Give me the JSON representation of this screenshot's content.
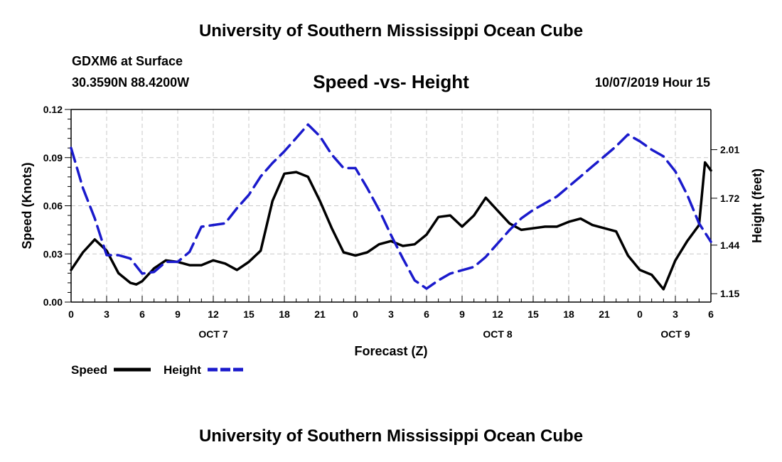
{
  "header": {
    "title_top": "University of Southern Mississippi Ocean Cube",
    "station": "GDXM6 at Surface",
    "coords": "30.3590N 88.4200W",
    "chart_title": "Speed -vs- Height",
    "datetime": "10/07/2019 Hour 15"
  },
  "footer": {
    "title_bottom": "University of Southern Mississippi Ocean Cube"
  },
  "colors": {
    "speed": "#000000",
    "height": "#1a1acc",
    "grid": "#c8c8c8"
  },
  "chart_data": {
    "type": "line",
    "title": "Speed -vs- Height",
    "xlabel": "Forecast (Z)",
    "ylabel": "Speed (Knots)",
    "y2label": "Height (feet)",
    "xlim": [
      0,
      54
    ],
    "ylim": [
      0,
      0.12
    ],
    "y2lim": [
      1.1,
      2.25
    ],
    "x_ticks": [
      0,
      3,
      6,
      9,
      12,
      15,
      18,
      21,
      24,
      27,
      30,
      33,
      36,
      39,
      42,
      45,
      48,
      51,
      54
    ],
    "x_tick_labels": [
      "0",
      "3",
      "6",
      "9",
      "12",
      "15",
      "18",
      "21",
      "0",
      "3",
      "6",
      "9",
      "12",
      "15",
      "18",
      "21",
      "0",
      "3",
      "6"
    ],
    "y_ticks": [
      0,
      0.03,
      0.06,
      0.09,
      0.12
    ],
    "y_tick_labels": [
      "0.00",
      "0.03",
      "0.06",
      "0.09",
      "0.12"
    ],
    "y2_ticks": [
      1.15,
      1.44,
      1.72,
      2.01
    ],
    "y2_tick_labels": [
      "1.15",
      "1.44",
      "1.72",
      "2.01"
    ],
    "day_labels": [
      {
        "x": 12,
        "label": "OCT 7"
      },
      {
        "x": 36,
        "label": "OCT 8"
      },
      {
        "x": 51,
        "label": "OCT 9"
      }
    ],
    "legend": [
      {
        "name": "Speed",
        "style": "solid"
      },
      {
        "name": "Height",
        "style": "dashed"
      }
    ],
    "series": [
      {
        "name": "Speed",
        "axis": "left",
        "style": "solid",
        "x": [
          0,
          1,
          2,
          3,
          4,
          5,
          5.5,
          6,
          7,
          8,
          9,
          10,
          11,
          12,
          13,
          14,
          15,
          16,
          17,
          18,
          19,
          20,
          21,
          22,
          23,
          24,
          25,
          26,
          27,
          28,
          29,
          30,
          31,
          32,
          33,
          34,
          35,
          36,
          37,
          38,
          39,
          40,
          41,
          42,
          43,
          44,
          45,
          46,
          47,
          48,
          49,
          50,
          51,
          52,
          53,
          53.5,
          54
        ],
        "values": [
          0.02,
          0.031,
          0.039,
          0.032,
          0.018,
          0.012,
          0.011,
          0.013,
          0.021,
          0.026,
          0.025,
          0.023,
          0.023,
          0.026,
          0.024,
          0.02,
          0.025,
          0.032,
          0.063,
          0.08,
          0.081,
          0.078,
          0.063,
          0.046,
          0.031,
          0.029,
          0.031,
          0.036,
          0.038,
          0.035,
          0.036,
          0.042,
          0.053,
          0.054,
          0.047,
          0.054,
          0.065,
          0.057,
          0.049,
          0.045,
          0.046,
          0.047,
          0.047,
          0.05,
          0.052,
          0.048,
          0.046,
          0.044,
          0.029,
          0.02,
          0.017,
          0.008,
          0.026,
          0.038,
          0.048,
          0.087,
          0.082
        ]
      },
      {
        "name": "Height",
        "axis": "right",
        "style": "dashed",
        "x": [
          0,
          1,
          2,
          3,
          4,
          5,
          6,
          7,
          8,
          9,
          10,
          11,
          12,
          13,
          14,
          15,
          16,
          17,
          18,
          19,
          20,
          21,
          22,
          23,
          24,
          25,
          26,
          27,
          28,
          29,
          30,
          31,
          32,
          33,
          34,
          35,
          36,
          37,
          38,
          39,
          40,
          41,
          42,
          43,
          44,
          45,
          46,
          47,
          48,
          49,
          50,
          51,
          52,
          53,
          54
        ],
        "values": [
          2.02,
          1.78,
          1.6,
          1.38,
          1.38,
          1.36,
          1.27,
          1.28,
          1.34,
          1.34,
          1.4,
          1.55,
          1.56,
          1.57,
          1.66,
          1.74,
          1.85,
          1.93,
          2.0,
          2.08,
          2.16,
          2.09,
          1.98,
          1.9,
          1.9,
          1.78,
          1.65,
          1.5,
          1.36,
          1.23,
          1.18,
          1.23,
          1.27,
          1.29,
          1.31,
          1.37,
          1.45,
          1.53,
          1.6,
          1.65,
          1.69,
          1.73,
          1.79,
          1.85,
          1.91,
          1.97,
          2.03,
          2.1,
          2.06,
          2.01,
          1.97,
          1.88,
          1.74,
          1.57,
          1.46
        ]
      }
    ]
  }
}
